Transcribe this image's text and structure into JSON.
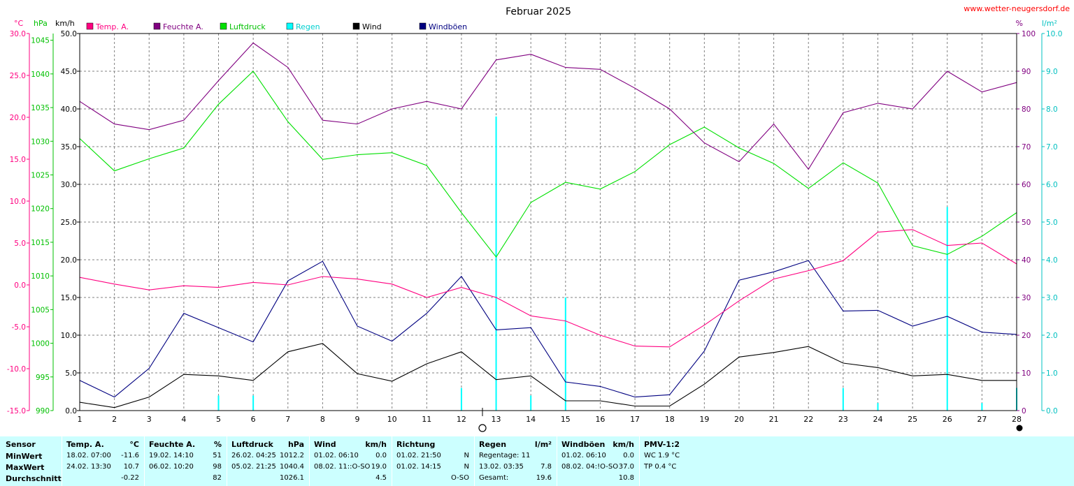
{
  "title": "Februar 2025",
  "site": "www.wetter-neugersdorf.de",
  "colors": {
    "temp": "#ff0080",
    "feuchte": "#800080",
    "luftdruck": "#00e000",
    "regen": "#00ffff",
    "wind": "#000000",
    "windboeen": "#000080",
    "stats_bg": "#ccffff"
  },
  "units": {
    "celsius": "°C",
    "hpa": "hPa",
    "kmh": "km/h",
    "percent": "%",
    "lm2": "l/m²"
  },
  "legend": [
    "Temp. A.",
    "Feuchte A.",
    "Luftdruck",
    "Regen",
    "Wind",
    "Windböen"
  ],
  "axes": {
    "celsius_ticks": [
      "30.0",
      "25.0",
      "20.0",
      "15.0",
      "10.0",
      "5.0",
      "0.0",
      "-5.0",
      "-10.0",
      "-15.0"
    ],
    "hpa_ticks": [
      "1045",
      "1040",
      "1035",
      "1030",
      "1025",
      "1020",
      "1015",
      "1010",
      "1005",
      "1000",
      "995",
      "990"
    ],
    "kmh_ticks": [
      "50.0",
      "45.0",
      "40.0",
      "35.0",
      "30.0",
      "25.0",
      "20.0",
      "15.0",
      "10.0",
      "5.0",
      "0.0"
    ],
    "percent_ticks": [
      "100",
      "90",
      "80",
      "70",
      "60",
      "50",
      "40",
      "30",
      "20",
      "10",
      "0"
    ],
    "lm2_ticks": [
      "10.0",
      "9.0",
      "8.0",
      "7.0",
      "6.0",
      "5.0",
      "4.0",
      "3.0",
      "2.0",
      "1.0",
      "0.0"
    ],
    "x_ticks": [
      "1",
      "2",
      "3",
      "4",
      "5",
      "6",
      "7",
      "8",
      "9",
      "10",
      "11",
      "12",
      "13",
      "14",
      "15",
      "16",
      "17",
      "18",
      "19",
      "20",
      "21",
      "22",
      "23",
      "24",
      "25",
      "26",
      "27",
      "28"
    ]
  },
  "chart_data": {
    "type": "line",
    "title": "Februar 2025",
    "x": [
      1,
      2,
      3,
      4,
      5,
      6,
      7,
      8,
      9,
      10,
      11,
      12,
      13,
      14,
      15,
      16,
      17,
      18,
      19,
      20,
      21,
      22,
      23,
      24,
      25,
      26,
      27,
      28
    ],
    "xlim": [
      1,
      28
    ],
    "grid": true,
    "legend_position": "top-left",
    "scales": {
      "temp_c": [
        -15,
        30
      ],
      "pressure_hpa": [
        990,
        1046
      ],
      "wind_kmh": [
        0,
        50
      ],
      "humidity_pct": [
        0,
        100
      ],
      "rain_lm2": [
        0,
        10
      ]
    },
    "series": [
      {
        "name": "Temp. A.",
        "unit": "°C",
        "values": [
          0.9,
          0.1,
          -0.6,
          -0.1,
          -0.3,
          0.3,
          0.0,
          1.0,
          0.7,
          0.1,
          -1.5,
          -0.3,
          -1.5,
          -3.7,
          -4.3,
          -6.0,
          -7.3,
          -7.4,
          -4.8,
          -1.9,
          0.7,
          1.7,
          2.9,
          6.3,
          6.6,
          4.7,
          5.0,
          2.5
        ]
      },
      {
        "name": "Feuchte A.",
        "unit": "%",
        "values": [
          82,
          76,
          74.5,
          77,
          87.5,
          97.5,
          91,
          77,
          76,
          80,
          82,
          80,
          93,
          94.5,
          91,
          90.5,
          85.5,
          80,
          71,
          66,
          76,
          64,
          79,
          81.5,
          80,
          90,
          84.5,
          87
        ]
      },
      {
        "name": "Luftdruck",
        "unit": "hPa",
        "values": [
          1030.4,
          1025.6,
          1027.4,
          1029.0,
          1035.5,
          1040.4,
          1032.9,
          1027.3,
          1028.0,
          1028.3,
          1026.4,
          1019.4,
          1012.8,
          1020.9,
          1023.9,
          1022.9,
          1025.5,
          1029.5,
          1032.1,
          1029.0,
          1026.7,
          1023.0,
          1026.8,
          1023.8,
          1014.5,
          1013.2,
          1015.9,
          1019.4
        ]
      },
      {
        "name": "Regen",
        "unit": "l/m²",
        "values": [
          0,
          0,
          0,
          0,
          0.4,
          0.4,
          0,
          0,
          0,
          0,
          0,
          0.6,
          7.8,
          0.4,
          3.0,
          0,
          0,
          0,
          0,
          0,
          0,
          0,
          0.6,
          0.2,
          0,
          5.4,
          0.2,
          0.6
        ]
      },
      {
        "name": "Wind",
        "unit": "km/h",
        "values": [
          1.1,
          0.4,
          1.8,
          4.8,
          4.6,
          4.0,
          7.8,
          8.9,
          4.9,
          3.9,
          6.2,
          7.8,
          4.1,
          4.6,
          1.3,
          1.3,
          0.6,
          0.6,
          3.5,
          7.1,
          7.7,
          8.5,
          6.3,
          5.7,
          4.6,
          4.8,
          4.0,
          4.0
        ]
      },
      {
        "name": "Windböen",
        "unit": "km/h",
        "values": [
          4.0,
          1.8,
          5.6,
          12.9,
          11.0,
          9.1,
          17.2,
          19.8,
          11.2,
          9.2,
          12.9,
          17.8,
          10.7,
          11.0,
          3.8,
          3.2,
          1.8,
          2.1,
          7.9,
          17.3,
          18.4,
          19.9,
          13.2,
          13.3,
          11.2,
          12.5,
          10.4,
          10.1
        ]
      }
    ]
  },
  "stats": {
    "sensor": {
      "header": "Sensor",
      "r1": "MinWert",
      "r2": "MaxWert",
      "r3": "Durchschnitt"
    },
    "temp": {
      "header": "Temp. A.",
      "unit": "°C",
      "min_date": "18.02.  07:00",
      "min_val": "-11.6",
      "max_date": "24.02.  13:30",
      "max_val": "10.7",
      "avg": "-0.22"
    },
    "feuchte": {
      "header": "Feuchte A.",
      "unit": "%",
      "min_date": "19.02.  14:10",
      "min_val": "51",
      "max_date": "06.02.  10:20",
      "max_val": "98",
      "avg": "82"
    },
    "luftdruck": {
      "header": "Luftdruck",
      "unit": "hPa",
      "min_date": "26.02.  04:25",
      "min_val": "1012.2",
      "max_date": "05.02.  21:25",
      "max_val": "1040.4",
      "avg": "1026.1"
    },
    "wind": {
      "header": "Wind",
      "unit": "km/h",
      "min_date": "01.02.  06:10",
      "min_val": "0.0",
      "max_date": "08.02.  11::O-SO",
      "max_val": "19.0",
      "avg": "4.5"
    },
    "richtung": {
      "header": "Richtung",
      "min_date": "01.02.  21:50",
      "min_val": "N",
      "max_date": "01.02.  14:15",
      "max_val": "N",
      "avg": "O-SO"
    },
    "regen": {
      "header": "Regen",
      "unit": "l/m²",
      "r1": "Regentage: 11",
      "r2_date": "13.02.  03:35",
      "r2_val": "7.8",
      "r3_label": "Gesamt:",
      "r3_val": "19.6"
    },
    "windboeen": {
      "header": "Windböen",
      "unit": "km/h",
      "min_date": "01.02.  06:10",
      "min_val": "0.0",
      "max_date": "08.02.  04:!O-SO",
      "max_val": "37.0",
      "avg": "10.8"
    },
    "pmv": {
      "header": "PMV-1:2",
      "r1": "WC 1.9 °C",
      "r2": "TP 0.4 °C"
    }
  }
}
